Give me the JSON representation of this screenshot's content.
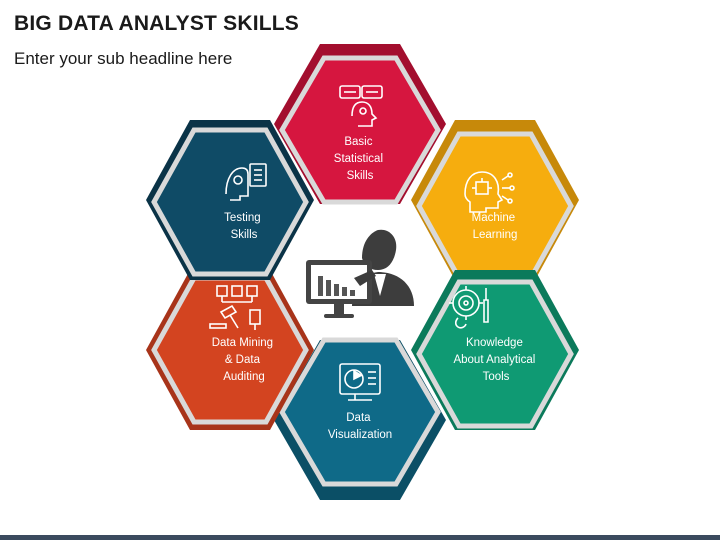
{
  "header": {
    "title": "BIG DATA ANALYST SKILLS",
    "subtitle": "Enter your sub headline here"
  },
  "colors": {
    "basic": "#d6163f",
    "machine": "#f6ad0e",
    "knowledge": "#0f9a73",
    "visualization": "#0f6a88",
    "mining": "#d34420",
    "testing": "#0f4b66",
    "footer": "#3b4a5e"
  },
  "skills": [
    {
      "id": "basic",
      "icon": "statistics-head-icon",
      "lines": [
        "Basic",
        "Statistical",
        "Skills"
      ]
    },
    {
      "id": "machine",
      "icon": "ai-brain-icon",
      "lines": [
        "Machine",
        "Learning"
      ]
    },
    {
      "id": "knowledge",
      "icon": "analytics-gear-icon",
      "lines": [
        "Knowledge",
        "About Analytical",
        "Tools"
      ]
    },
    {
      "id": "visualization",
      "icon": "pie-chart-monitor-icon",
      "lines": [
        "Data",
        "Visualization"
      ]
    },
    {
      "id": "mining",
      "icon": "data-mining-icon",
      "lines": [
        "Data Mining",
        "& Data",
        "Auditing"
      ]
    },
    {
      "id": "testing",
      "icon": "test-checklist-icon",
      "lines": [
        "Testing",
        "Skills"
      ]
    }
  ],
  "center": {
    "icon": "analyst-presenting-chart-icon"
  }
}
